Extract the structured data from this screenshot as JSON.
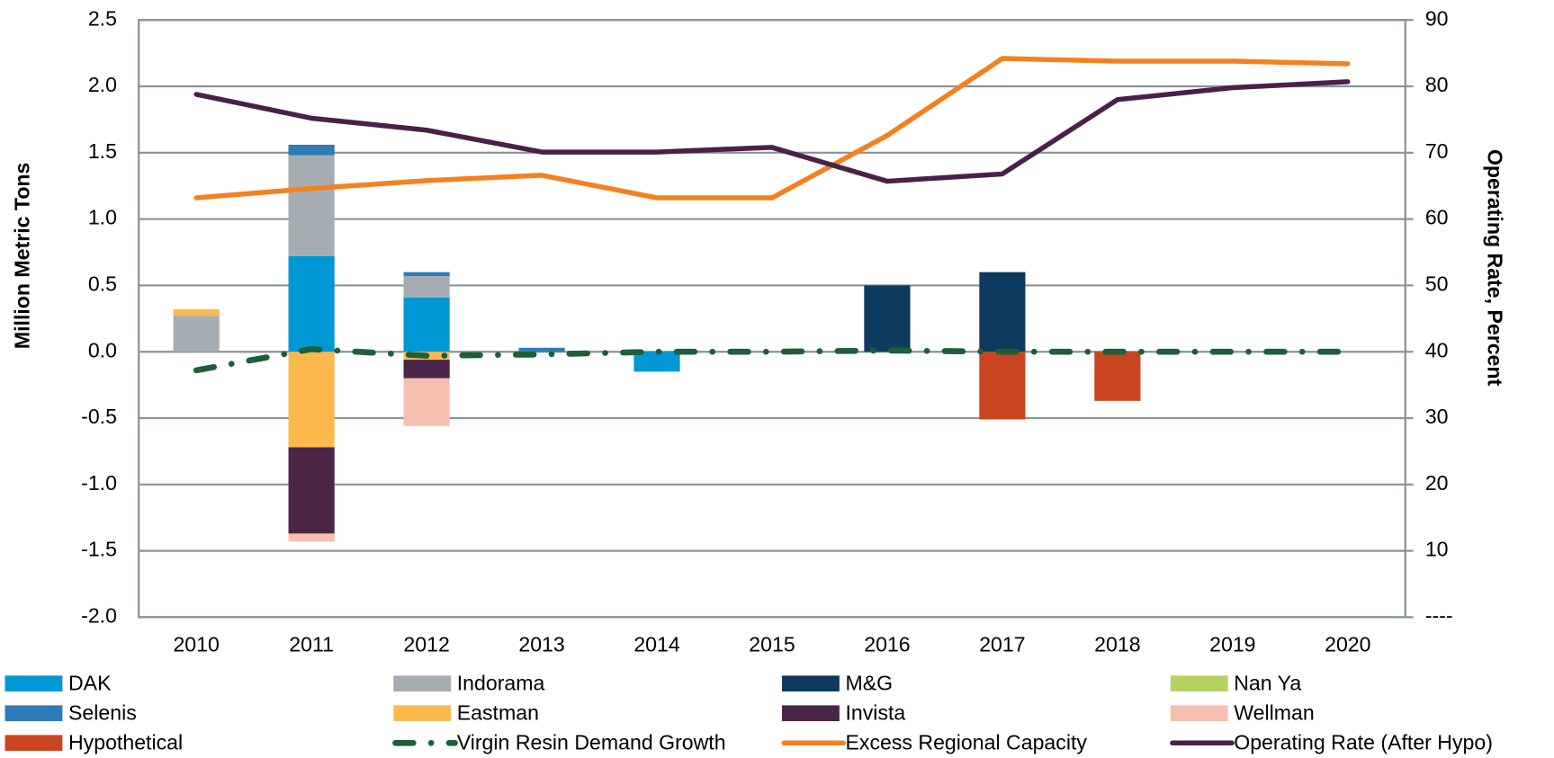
{
  "chart_data": {
    "type": "bar",
    "stacked": true,
    "y_label": "Million Metric Tons",
    "y2_label": "Operating Rate, Percent",
    "categories": [
      "2010",
      "2011",
      "2012",
      "2013",
      "2014",
      "2015",
      "2016",
      "2017",
      "2018",
      "2019",
      "2020"
    ],
    "ylim": [
      -2,
      2.5
    ],
    "yticks": [
      {
        "value": -2,
        "label": "-2.0"
      },
      -1.5,
      {
        "value": -1,
        "label": "-1.0"
      },
      -0.5,
      {
        "value": 0,
        "label": "0.0"
      },
      0.5,
      {
        "value": 1,
        "label": "1.0"
      },
      1.5,
      {
        "value": 2,
        "label": "2.0"
      },
      2.5
    ],
    "y2lim": [
      0,
      90
    ],
    "y2ticks": [
      {
        "value": 0,
        "label": "----"
      },
      10,
      20,
      30,
      40,
      50,
      60,
      70,
      80,
      90
    ],
    "grid": true,
    "series": [
      {
        "name": "DAK",
        "color": "#0098d4",
        "values": [
          null,
          0.72,
          0.41,
          null,
          -0.15,
          null,
          null,
          null,
          null,
          null,
          null
        ]
      },
      {
        "name": "Indorama",
        "color": "#a5adb3",
        "values": [
          0.27,
          0.76,
          0.16,
          null,
          null,
          null,
          null,
          null,
          null,
          null,
          null
        ]
      },
      {
        "name": "M&G",
        "color": "#0f3a60",
        "values": [
          null,
          null,
          null,
          null,
          null,
          null,
          0.5,
          0.6,
          null,
          null,
          null
        ]
      },
      {
        "name": "Nan Ya",
        "color": "#b5d15f",
        "values": [
          null,
          null,
          null,
          null,
          null,
          null,
          null,
          null,
          null,
          null,
          null
        ]
      },
      {
        "name": "Selenis",
        "color": "#2e7bb5",
        "values": [
          null,
          0.08,
          0.03,
          0.03,
          null,
          null,
          null,
          null,
          null,
          null,
          null
        ]
      },
      {
        "name": "Eastman",
        "color": "#fdb94e",
        "values": [
          0.05,
          -0.72,
          -0.06,
          null,
          null,
          null,
          null,
          null,
          null,
          null,
          null
        ]
      },
      {
        "name": "Invista",
        "color": "#4a2547",
        "values": [
          null,
          -0.65,
          -0.14,
          null,
          null,
          null,
          null,
          null,
          null,
          null,
          null
        ]
      },
      {
        "name": "Wellman",
        "color": "#f7bfb0",
        "values": [
          null,
          -0.06,
          -0.36,
          null,
          null,
          null,
          null,
          null,
          null,
          null,
          null
        ]
      },
      {
        "name": "Hypothetical",
        "color": "#c9451f",
        "values": [
          null,
          null,
          null,
          null,
          null,
          null,
          null,
          -0.51,
          -0.37,
          null,
          null
        ]
      },
      {
        "name": "Virgin Resin Demand Growth",
        "color": "#1e5e3a",
        "type": "line",
        "dash": true,
        "values": [
          -0.14,
          0.02,
          -0.03,
          -0.02,
          0,
          0,
          0.01,
          0,
          0,
          0,
          0
        ]
      },
      {
        "name": "Excess Regional Capacity",
        "color": "#f58020",
        "type": "line",
        "values": [
          1.16,
          1.23,
          1.29,
          1.33,
          1.16,
          1.16,
          1.63,
          2.21,
          2.19,
          2.19,
          2.17
        ]
      },
      {
        "name": "Operating Rate (After Hypo)",
        "color": "#4a2048",
        "type": "line",
        "axis": "y2",
        "values": [
          78.8,
          75.2,
          73.4,
          70.1,
          70.1,
          70.8,
          65.7,
          66.8,
          78.0,
          79.8,
          80.7
        ]
      }
    ]
  }
}
